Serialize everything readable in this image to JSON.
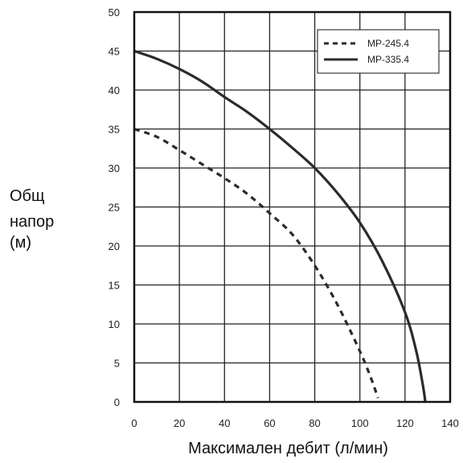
{
  "chart_data": {
    "type": "line",
    "title": "",
    "xlabel": "Максимален дебит (л/мин)",
    "ylabel": [
      "Общ",
      "напор",
      "(м)"
    ],
    "xlim": [
      0,
      140
    ],
    "ylim": [
      0,
      50
    ],
    "xticks": [
      0,
      20,
      40,
      60,
      80,
      100,
      120,
      140
    ],
    "yticks": [
      0,
      5,
      10,
      15,
      20,
      25,
      30,
      35,
      40,
      45,
      50
    ],
    "grid": true,
    "legend_position": "top-right",
    "series": [
      {
        "name": "MP-245.4",
        "style": "dashed",
        "color": "#2b2b2b",
        "x": [
          0,
          10,
          20,
          30,
          40,
          50,
          60,
          70,
          80,
          90,
          100,
          105,
          108
        ],
        "y": [
          35,
          34,
          32.3,
          30.5,
          28.7,
          26.7,
          24.2,
          21.5,
          17.5,
          12.5,
          6.5,
          3,
          0.5
        ]
      },
      {
        "name": "MP-335.4",
        "style": "solid",
        "color": "#2b2b2b",
        "x": [
          0,
          10,
          20,
          30,
          40,
          50,
          60,
          70,
          80,
          90,
          100,
          110,
          120,
          125,
          128,
          129
        ],
        "y": [
          45,
          44,
          42.7,
          41.1,
          39.1,
          37.2,
          35,
          32.6,
          30,
          26.8,
          23,
          18,
          11.5,
          6.5,
          2,
          0
        ]
      }
    ]
  }
}
